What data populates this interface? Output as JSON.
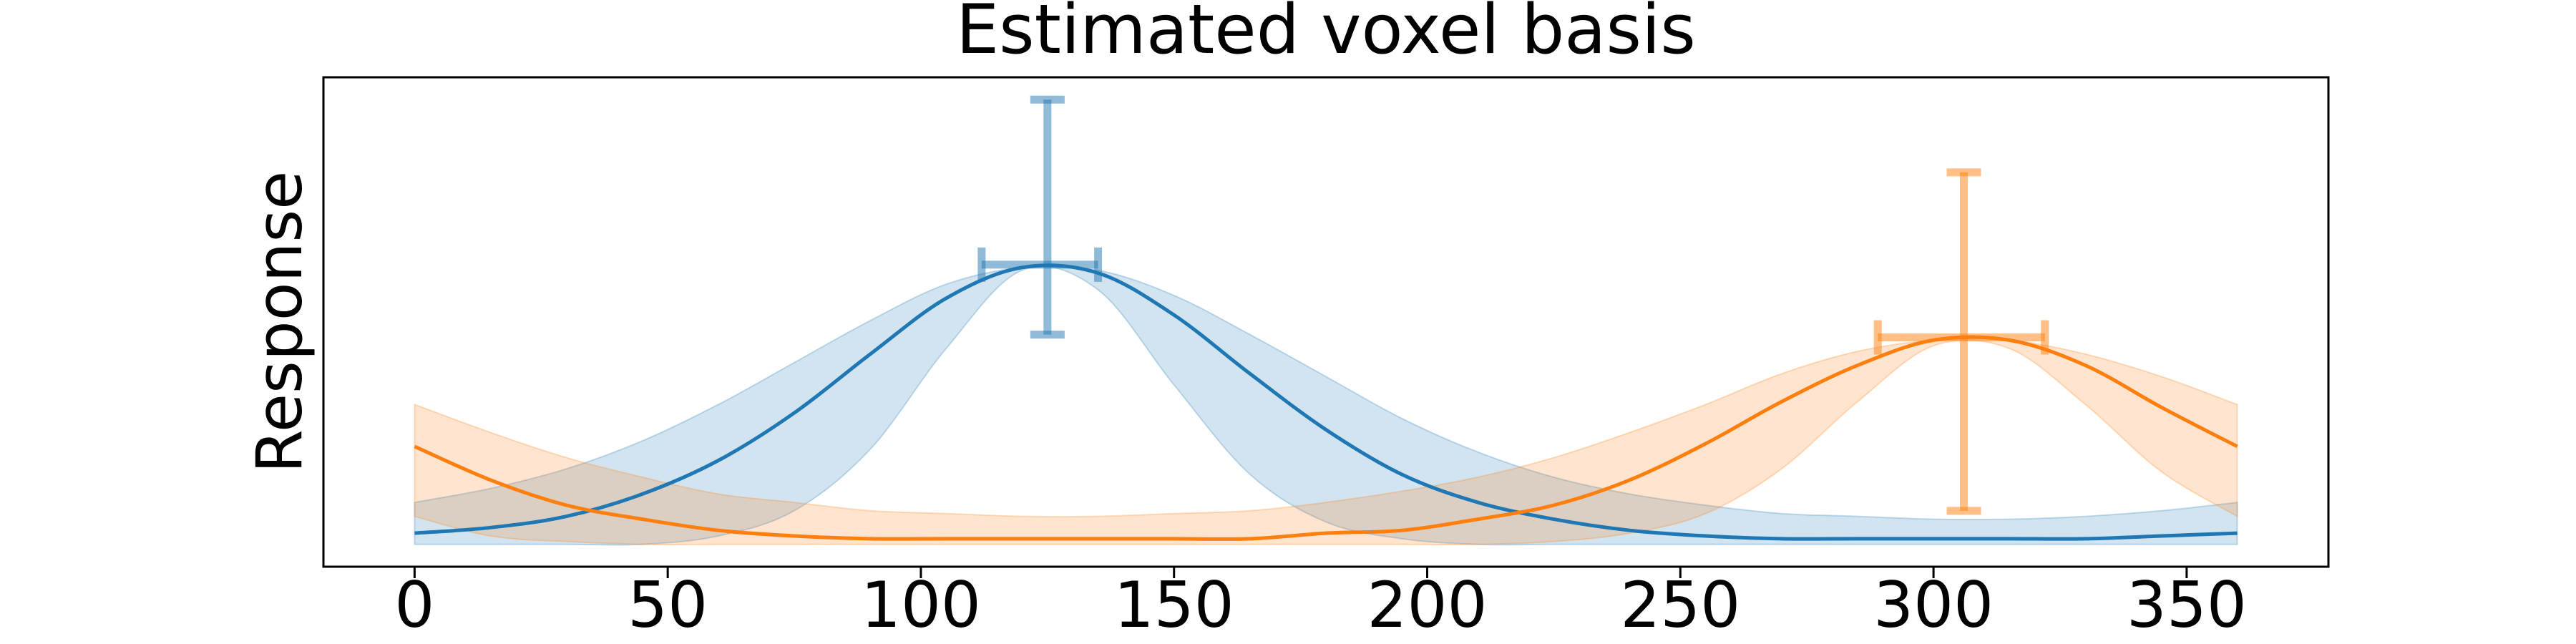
{
  "chart_data": {
    "type": "line",
    "title": "Estimated voxel basis",
    "ylabel": "Response",
    "x": [
      0,
      15,
      30,
      45,
      60,
      75,
      90,
      105,
      120,
      135,
      150,
      165,
      180,
      195,
      210,
      225,
      240,
      255,
      270,
      285,
      300,
      315,
      330,
      345,
      360
    ],
    "series": [
      {
        "color": "#1f77b4",
        "values": [
          0.04,
          0.06,
          0.1,
          0.18,
          0.3,
          0.47,
          0.68,
          0.88,
          0.99,
          0.97,
          0.82,
          0.61,
          0.41,
          0.25,
          0.15,
          0.09,
          0.05,
          0.03,
          0.02,
          0.02,
          0.02,
          0.02,
          0.02,
          0.03,
          0.04
        ],
        "upper": [
          0.15,
          0.2,
          0.27,
          0.37,
          0.5,
          0.65,
          0.8,
          0.93,
          0.99,
          0.98,
          0.89,
          0.75,
          0.6,
          0.45,
          0.33,
          0.24,
          0.18,
          0.14,
          0.11,
          0.1,
          0.09,
          0.09,
          0.1,
          0.12,
          0.15
        ],
        "lower": [
          0,
          0,
          0,
          0,
          0.03,
          0.12,
          0.34,
          0.7,
          0.98,
          0.91,
          0.57,
          0.25,
          0.08,
          0.02,
          0,
          0,
          0,
          0,
          0,
          0,
          0,
          0,
          0,
          0,
          0
        ]
      },
      {
        "color": "#ff7f0e",
        "values": [
          0.35,
          0.23,
          0.14,
          0.09,
          0.05,
          0.03,
          0.02,
          0.02,
          0.02,
          0.02,
          0.02,
          0.02,
          0.04,
          0.05,
          0.09,
          0.14,
          0.23,
          0.36,
          0.51,
          0.64,
          0.73,
          0.73,
          0.64,
          0.49,
          0.35
        ],
        "upper": [
          0.5,
          0.4,
          0.31,
          0.24,
          0.18,
          0.15,
          0.12,
          0.11,
          0.1,
          0.1,
          0.11,
          0.12,
          0.15,
          0.19,
          0.24,
          0.31,
          0.4,
          0.5,
          0.61,
          0.69,
          0.73,
          0.73,
          0.68,
          0.6,
          0.5
        ],
        "lower": [
          0.1,
          0.03,
          0.01,
          0,
          0,
          0,
          0,
          0,
          0,
          0,
          0,
          0,
          0,
          0,
          0,
          0.01,
          0.04,
          0.11,
          0.27,
          0.51,
          0.71,
          0.7,
          0.5,
          0.26,
          0.1
        ]
      }
    ],
    "error_bars": [
      {
        "color": "#1f77b4",
        "x": 125,
        "y": 1.0,
        "x_range": [
          112,
          135
        ],
        "y_range": [
          0.75,
          1.59
        ]
      },
      {
        "color": "#ff7f0e",
        "x": 306,
        "y": 0.74,
        "x_range": [
          289,
          322
        ],
        "y_range": [
          0.12,
          1.33
        ]
      }
    ],
    "xlim": [
      -18,
      378
    ],
    "ylim": [
      -0.08,
      1.67
    ],
    "xticks": [
      0,
      50,
      100,
      150,
      200,
      250,
      300,
      350
    ]
  }
}
